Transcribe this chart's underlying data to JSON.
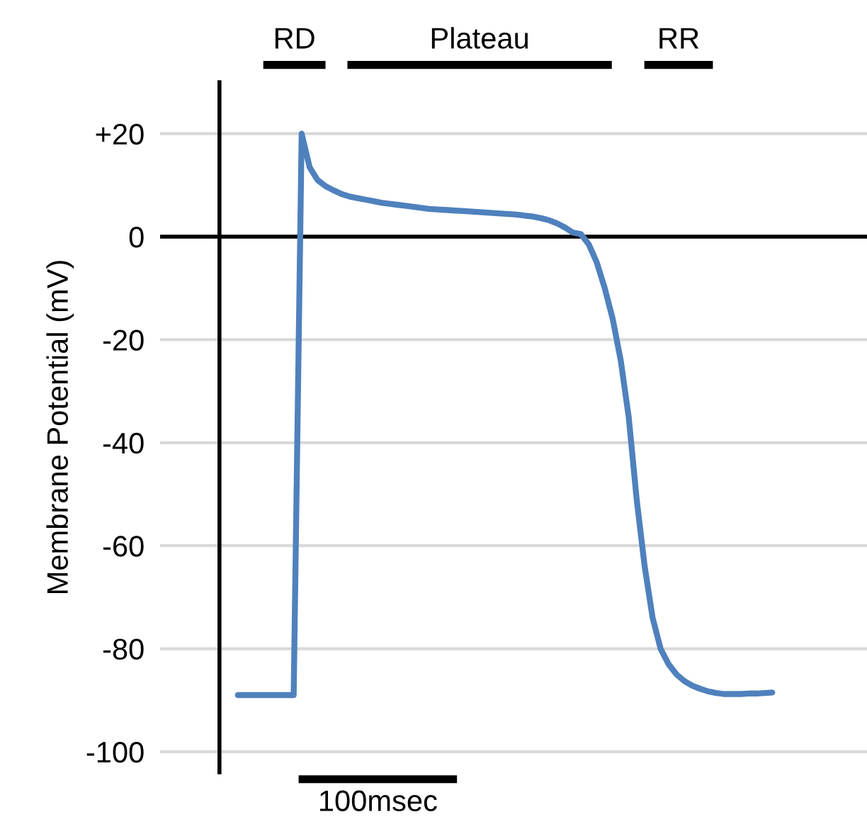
{
  "chart_data": {
    "type": "line",
    "ylabel": "Membrane Potential (mV)",
    "categories": [
      null,
      null,
      null,
      null,
      null,
      null,
      null,
      null,
      null,
      null,
      null,
      null,
      null,
      null,
      null,
      null,
      null,
      null,
      null,
      null,
      null,
      null,
      null,
      null,
      null,
      null,
      null,
      null,
      null,
      null,
      null,
      null,
      null,
      null,
      null,
      null,
      null,
      null,
      null,
      null,
      null,
      null,
      null,
      null,
      null,
      null,
      null,
      null,
      null,
      null,
      null,
      null,
      null,
      null,
      null,
      null,
      null,
      null,
      null,
      null,
      null,
      null,
      null,
      null,
      null,
      null,
      null,
      null
    ],
    "series": [
      {
        "color": "#4f81bd",
        "values": [
          -89,
          -89,
          -89,
          -89,
          -89,
          -89,
          -89,
          -89,
          20,
          13.5,
          11,
          9.8,
          9,
          8.3,
          7.8,
          7.5,
          7.2,
          6.9,
          6.6,
          6.4,
          6.2,
          6,
          5.8,
          5.6,
          5.4,
          5.3,
          5.2,
          5.1,
          5,
          4.9,
          4.8,
          4.7,
          4.6,
          4.5,
          4.4,
          4.3,
          4.1,
          3.9,
          3.6,
          3.2,
          2.6,
          1.8,
          0.8,
          0.5,
          -1.5,
          -5,
          -10,
          -16,
          -24,
          -35,
          -51,
          -64,
          -74,
          -80,
          -83,
          -85,
          -86.3,
          -87.2,
          -87.8,
          -88.3,
          -88.6,
          -88.8,
          -88.8,
          -88.8,
          -88.7,
          -88.7,
          -88.6,
          -88.5
        ]
      }
    ],
    "ylim": [
      -104,
      30
    ],
    "yticks": [
      {
        "value": 20,
        "label": "+20"
      },
      0,
      -20,
      -40,
      -60,
      -80,
      -100
    ],
    "tick_labels": "y",
    "grid": "y",
    "marker": "none",
    "line_style": "solid",
    "ref_lines": [
      {
        "axis": "y",
        "value": 0,
        "color": "#000000"
      }
    ],
    "annotations": [
      "RD",
      "Plateau",
      "RR",
      "100msec"
    ]
  }
}
